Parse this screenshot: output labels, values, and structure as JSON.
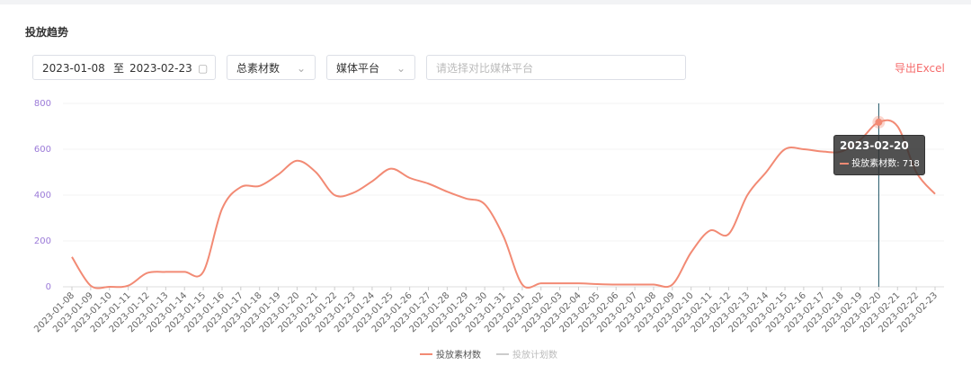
{
  "header": {
    "title": "投放趋势"
  },
  "filters": {
    "date_start": "2023-01-08",
    "date_sep": "至",
    "date_end": "2023-02-23",
    "metric": "总素材数",
    "platform": "媒体平台",
    "compare_placeholder": "请选择对比媒体平台",
    "export": "导出Excel"
  },
  "chart_data": {
    "type": "line",
    "categories": [
      "2023-01-08",
      "2023-01-09",
      "2023-01-10",
      "2023-01-11",
      "2023-01-12",
      "2023-01-13",
      "2023-01-14",
      "2023-01-15",
      "2023-01-16",
      "2023-01-17",
      "2023-01-18",
      "2023-01-19",
      "2023-01-20",
      "2023-01-21",
      "2023-01-22",
      "2023-01-23",
      "2023-01-24",
      "2023-01-25",
      "2023-01-26",
      "2023-01-27",
      "2023-01-28",
      "2023-01-29",
      "2023-01-30",
      "2023-01-31",
      "2023-02-01",
      "2023-02-02",
      "2023-02-03",
      "2023-02-04",
      "2023-02-05",
      "2023-02-06",
      "2023-02-07",
      "2023-02-08",
      "2023-02-09",
      "2023-02-10",
      "2023-02-11",
      "2023-02-12",
      "2023-02-13",
      "2023-02-14",
      "2023-02-15",
      "2023-02-16",
      "2023-02-17",
      "2023-02-18",
      "2023-02-19",
      "2023-02-20",
      "2023-02-21",
      "2023-02-22",
      "2023-02-23"
    ],
    "series": [
      {
        "name": "投放素材数",
        "color": "#f28a74",
        "values": [
          130,
          5,
          0,
          5,
          60,
          65,
          65,
          65,
          340,
          435,
          440,
          490,
          550,
          500,
          400,
          410,
          460,
          515,
          475,
          450,
          415,
          385,
          360,
          220,
          10,
          15,
          15,
          15,
          12,
          10,
          10,
          10,
          10,
          150,
          245,
          230,
          400,
          500,
          600,
          600,
          590,
          590,
          640,
          718,
          700,
          500,
          405
        ]
      }
    ],
    "hidden_series": [
      {
        "name": "投放计划数",
        "color": "#cccccc"
      }
    ],
    "ylim": [
      0,
      800
    ],
    "yticks": [
      0,
      200,
      400,
      600,
      800
    ],
    "grid": true,
    "tooltip_index": 43
  }
}
